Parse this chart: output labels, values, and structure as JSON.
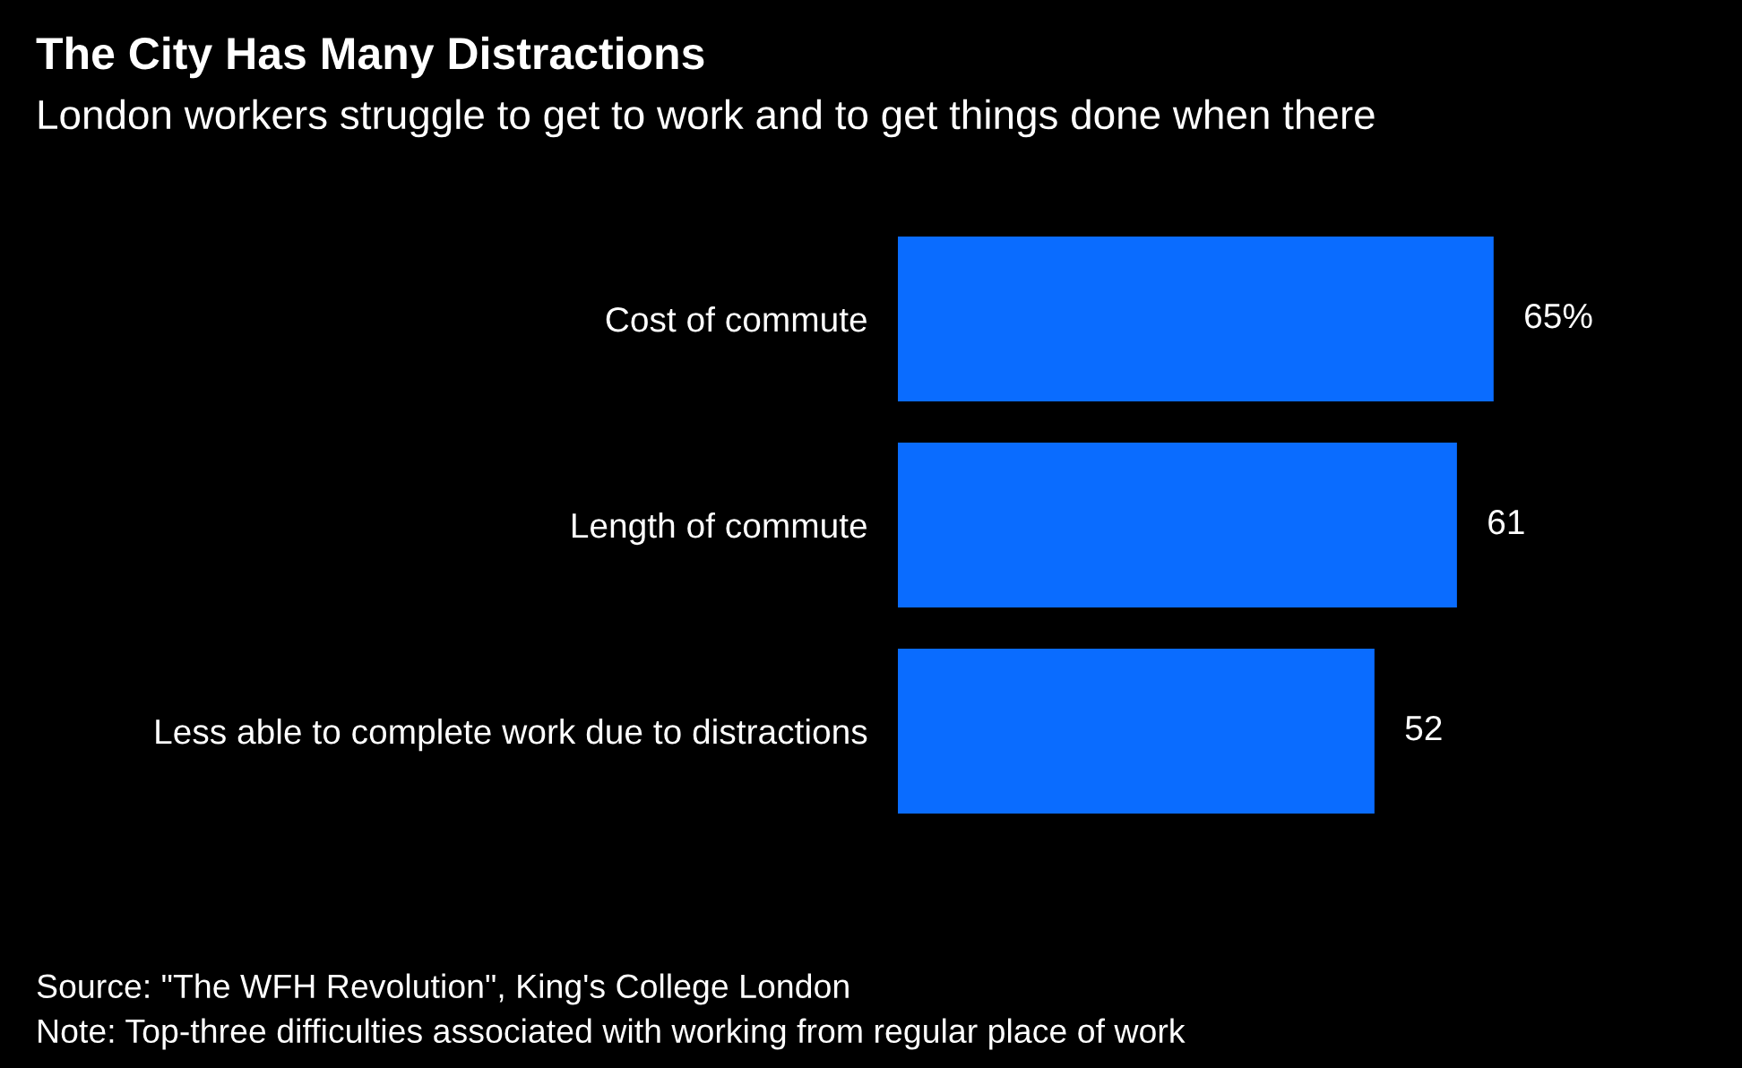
{
  "chart_data": {
    "type": "bar",
    "orientation": "horizontal",
    "title": "The City Has Many Distractions",
    "subtitle": "London workers struggle to get to work and to get things done when there",
    "categories": [
      "Cost of commute",
      "Length of commute",
      "Less able to complete work due to distractions"
    ],
    "values": [
      65,
      61,
      52
    ],
    "value_labels": [
      "65%",
      "61",
      "52"
    ],
    "color": "#0a6cff",
    "grid": false,
    "legend": false,
    "annotations": [
      "Source: \"The WFH Revolution\", King's College London",
      "Note: Top-three difficulties associated with working from regular place of work"
    ]
  }
}
